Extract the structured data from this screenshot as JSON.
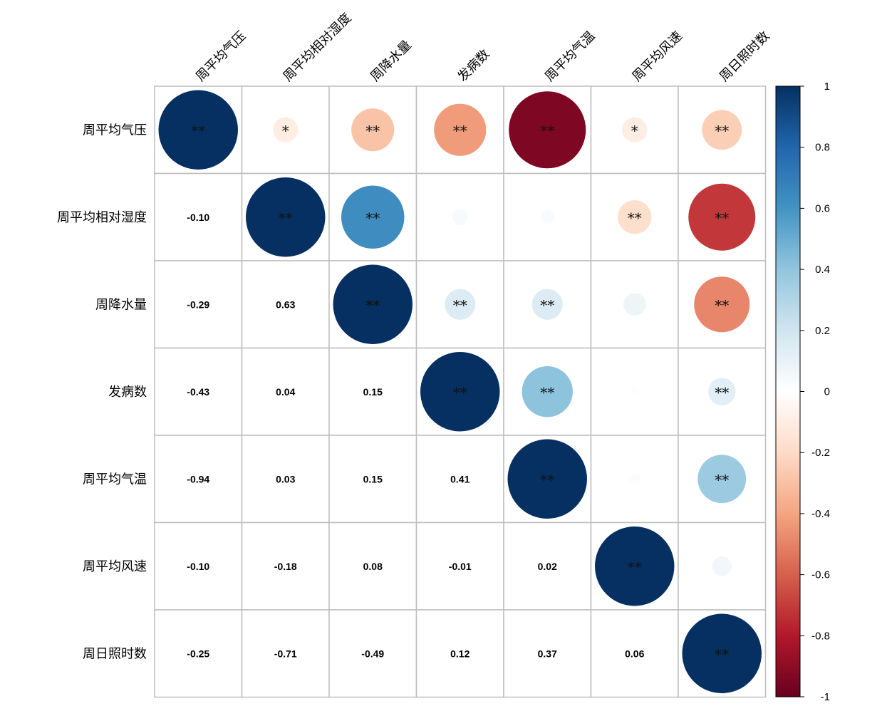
{
  "chart_data": {
    "type": "heatmap",
    "subtype": "correlation-matrix",
    "variables": [
      "周平均气压",
      "周平均相对湿度",
      "周降水量",
      "发病数",
      "周平均气温",
      "周平均风速",
      "周日照时数"
    ],
    "matrix": [
      [
        1.0,
        -0.1,
        -0.29,
        -0.43,
        -0.94,
        -0.1,
        -0.25
      ],
      [
        -0.1,
        1.0,
        0.63,
        0.04,
        0.03,
        -0.18,
        -0.71
      ],
      [
        -0.29,
        0.63,
        1.0,
        0.15,
        0.15,
        0.08,
        -0.49
      ],
      [
        -0.43,
        0.04,
        0.15,
        1.0,
        0.41,
        -0.01,
        0.12
      ],
      [
        -0.94,
        0.03,
        0.15,
        0.41,
        1.0,
        0.02,
        0.37
      ],
      [
        -0.1,
        -0.18,
        0.08,
        -0.01,
        0.02,
        1.0,
        0.06
      ],
      [
        -0.25,
        -0.71,
        -0.49,
        0.12,
        0.37,
        0.06,
        1.0
      ]
    ],
    "lower_triangle_labels": [
      [
        "",
        "",
        "",
        "",
        "",
        "",
        ""
      ],
      [
        "-0.10",
        "",
        "",
        "",
        "",
        "",
        ""
      ],
      [
        "-0.29",
        "0.63",
        "",
        "",
        "",
        "",
        ""
      ],
      [
        "-0.43",
        "0.04",
        "0.15",
        "",
        "",
        "",
        ""
      ],
      [
        "-0.94",
        "0.03",
        "0.15",
        "0.41",
        "",
        "",
        ""
      ],
      [
        "-0.10",
        "-0.18",
        "0.08",
        "-0.01",
        "0.02",
        "",
        ""
      ],
      [
        "-0.25",
        "-0.71",
        "-0.49",
        "0.12",
        "0.37",
        "0.06",
        ""
      ]
    ],
    "upper_triangle_significance": [
      [
        "**",
        "*",
        "**",
        "**",
        "**",
        "*",
        "**"
      ],
      [
        "",
        "**",
        "**",
        "",
        "",
        "**",
        "**"
      ],
      [
        "",
        "",
        "**",
        "**",
        "**",
        "",
        "**"
      ],
      [
        "",
        "",
        "",
        "**",
        "**",
        "",
        "**"
      ],
      [
        "",
        "",
        "",
        "",
        "**",
        "",
        "**"
      ],
      [
        "",
        "",
        "",
        "",
        "",
        "**",
        ""
      ],
      [
        "",
        "",
        "",
        "",
        "",
        "",
        "**"
      ]
    ],
    "colorbar": {
      "min": -1,
      "max": 1,
      "tick_labels": [
        "1",
        "0.8",
        "0.6",
        "0.4",
        "0.2",
        "0",
        "-0.2",
        "-0.4",
        "-0.6",
        "-0.8",
        "-1"
      ],
      "tick_values": [
        1,
        0.8,
        0.6,
        0.4,
        0.2,
        0,
        -0.2,
        -0.4,
        -0.6,
        -0.8,
        -1
      ],
      "colors": [
        "#67001F",
        "#B2182B",
        "#D6604D",
        "#F4A582",
        "#FDDBC7",
        "#FFFFFF",
        "#D1E5F0",
        "#92C5DE",
        "#4393C3",
        "#2166AC",
        "#053061"
      ]
    },
    "grid_color": "#BEBEBE"
  }
}
